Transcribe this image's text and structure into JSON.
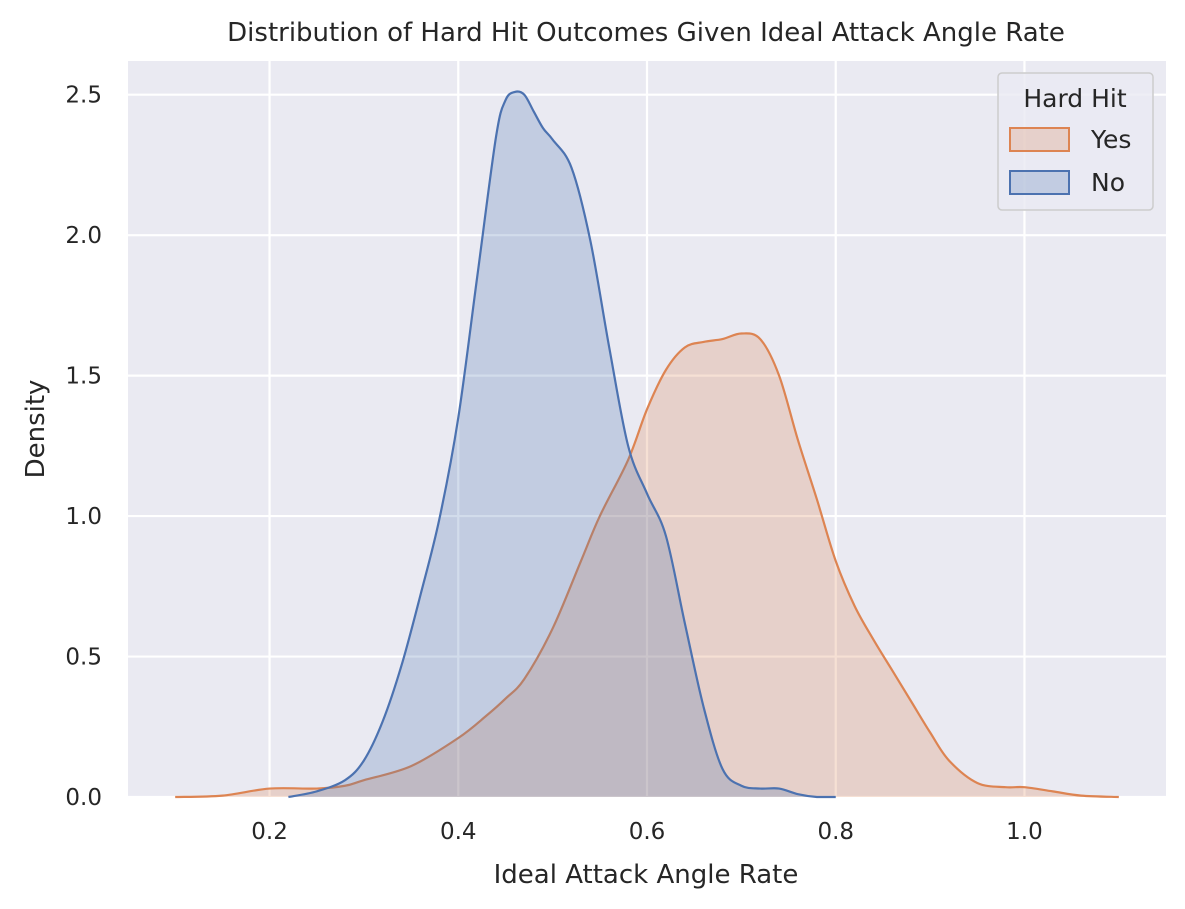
{
  "chart_data": {
    "type": "area",
    "title": "Distribution of Hard Hit Outcomes Given Ideal Attack Angle Rate",
    "xlabel": "Ideal Attack Angle Rate",
    "ylabel": "Density",
    "xlim": [
      0.05,
      1.15
    ],
    "ylim": [
      0,
      2.62
    ],
    "xticks": [
      0.2,
      0.4,
      0.6,
      0.8,
      1.0
    ],
    "xtick_labels": [
      "0.2",
      "0.4",
      "0.6",
      "0.8",
      "1.0"
    ],
    "yticks": [
      0.0,
      0.5,
      1.0,
      1.5,
      2.0,
      2.5
    ],
    "ytick_labels": [
      "0.0",
      "0.5",
      "1.0",
      "1.5",
      "2.0",
      "2.5"
    ],
    "grid": true,
    "background": "#eaeaf2",
    "legend": {
      "title": "Hard Hit",
      "placement": "top-right",
      "entries": [
        "Yes",
        "No"
      ]
    },
    "series": [
      {
        "name": "Yes",
        "color": "#dd8452",
        "x": [
          0.1,
          0.15,
          0.2,
          0.25,
          0.28,
          0.3,
          0.35,
          0.4,
          0.43,
          0.45,
          0.47,
          0.5,
          0.53,
          0.55,
          0.58,
          0.6,
          0.62,
          0.64,
          0.66,
          0.68,
          0.7,
          0.72,
          0.74,
          0.76,
          0.78,
          0.8,
          0.82,
          0.84,
          0.86,
          0.88,
          0.9,
          0.92,
          0.95,
          0.98,
          1.0,
          1.03,
          1.06,
          1.1
        ],
        "values": [
          0.0,
          0.005,
          0.03,
          0.03,
          0.04,
          0.06,
          0.11,
          0.21,
          0.29,
          0.35,
          0.42,
          0.6,
          0.84,
          1.0,
          1.2,
          1.38,
          1.52,
          1.6,
          1.62,
          1.63,
          1.65,
          1.63,
          1.5,
          1.27,
          1.06,
          0.84,
          0.68,
          0.56,
          0.45,
          0.34,
          0.23,
          0.13,
          0.05,
          0.035,
          0.035,
          0.02,
          0.005,
          0.0
        ]
      },
      {
        "name": "No",
        "color": "#4c72b0",
        "x": [
          0.22,
          0.25,
          0.28,
          0.3,
          0.32,
          0.34,
          0.36,
          0.38,
          0.4,
          0.42,
          0.44,
          0.45,
          0.46,
          0.47,
          0.48,
          0.49,
          0.5,
          0.52,
          0.54,
          0.56,
          0.58,
          0.6,
          0.62,
          0.64,
          0.66,
          0.68,
          0.7,
          0.72,
          0.74,
          0.76,
          0.78,
          0.8
        ],
        "values": [
          0.0,
          0.02,
          0.06,
          0.13,
          0.27,
          0.47,
          0.72,
          0.99,
          1.35,
          1.85,
          2.35,
          2.48,
          2.51,
          2.5,
          2.44,
          2.38,
          2.34,
          2.24,
          1.98,
          1.6,
          1.25,
          1.08,
          0.93,
          0.62,
          0.32,
          0.1,
          0.04,
          0.03,
          0.03,
          0.01,
          0.0,
          0.0
        ]
      }
    ]
  }
}
